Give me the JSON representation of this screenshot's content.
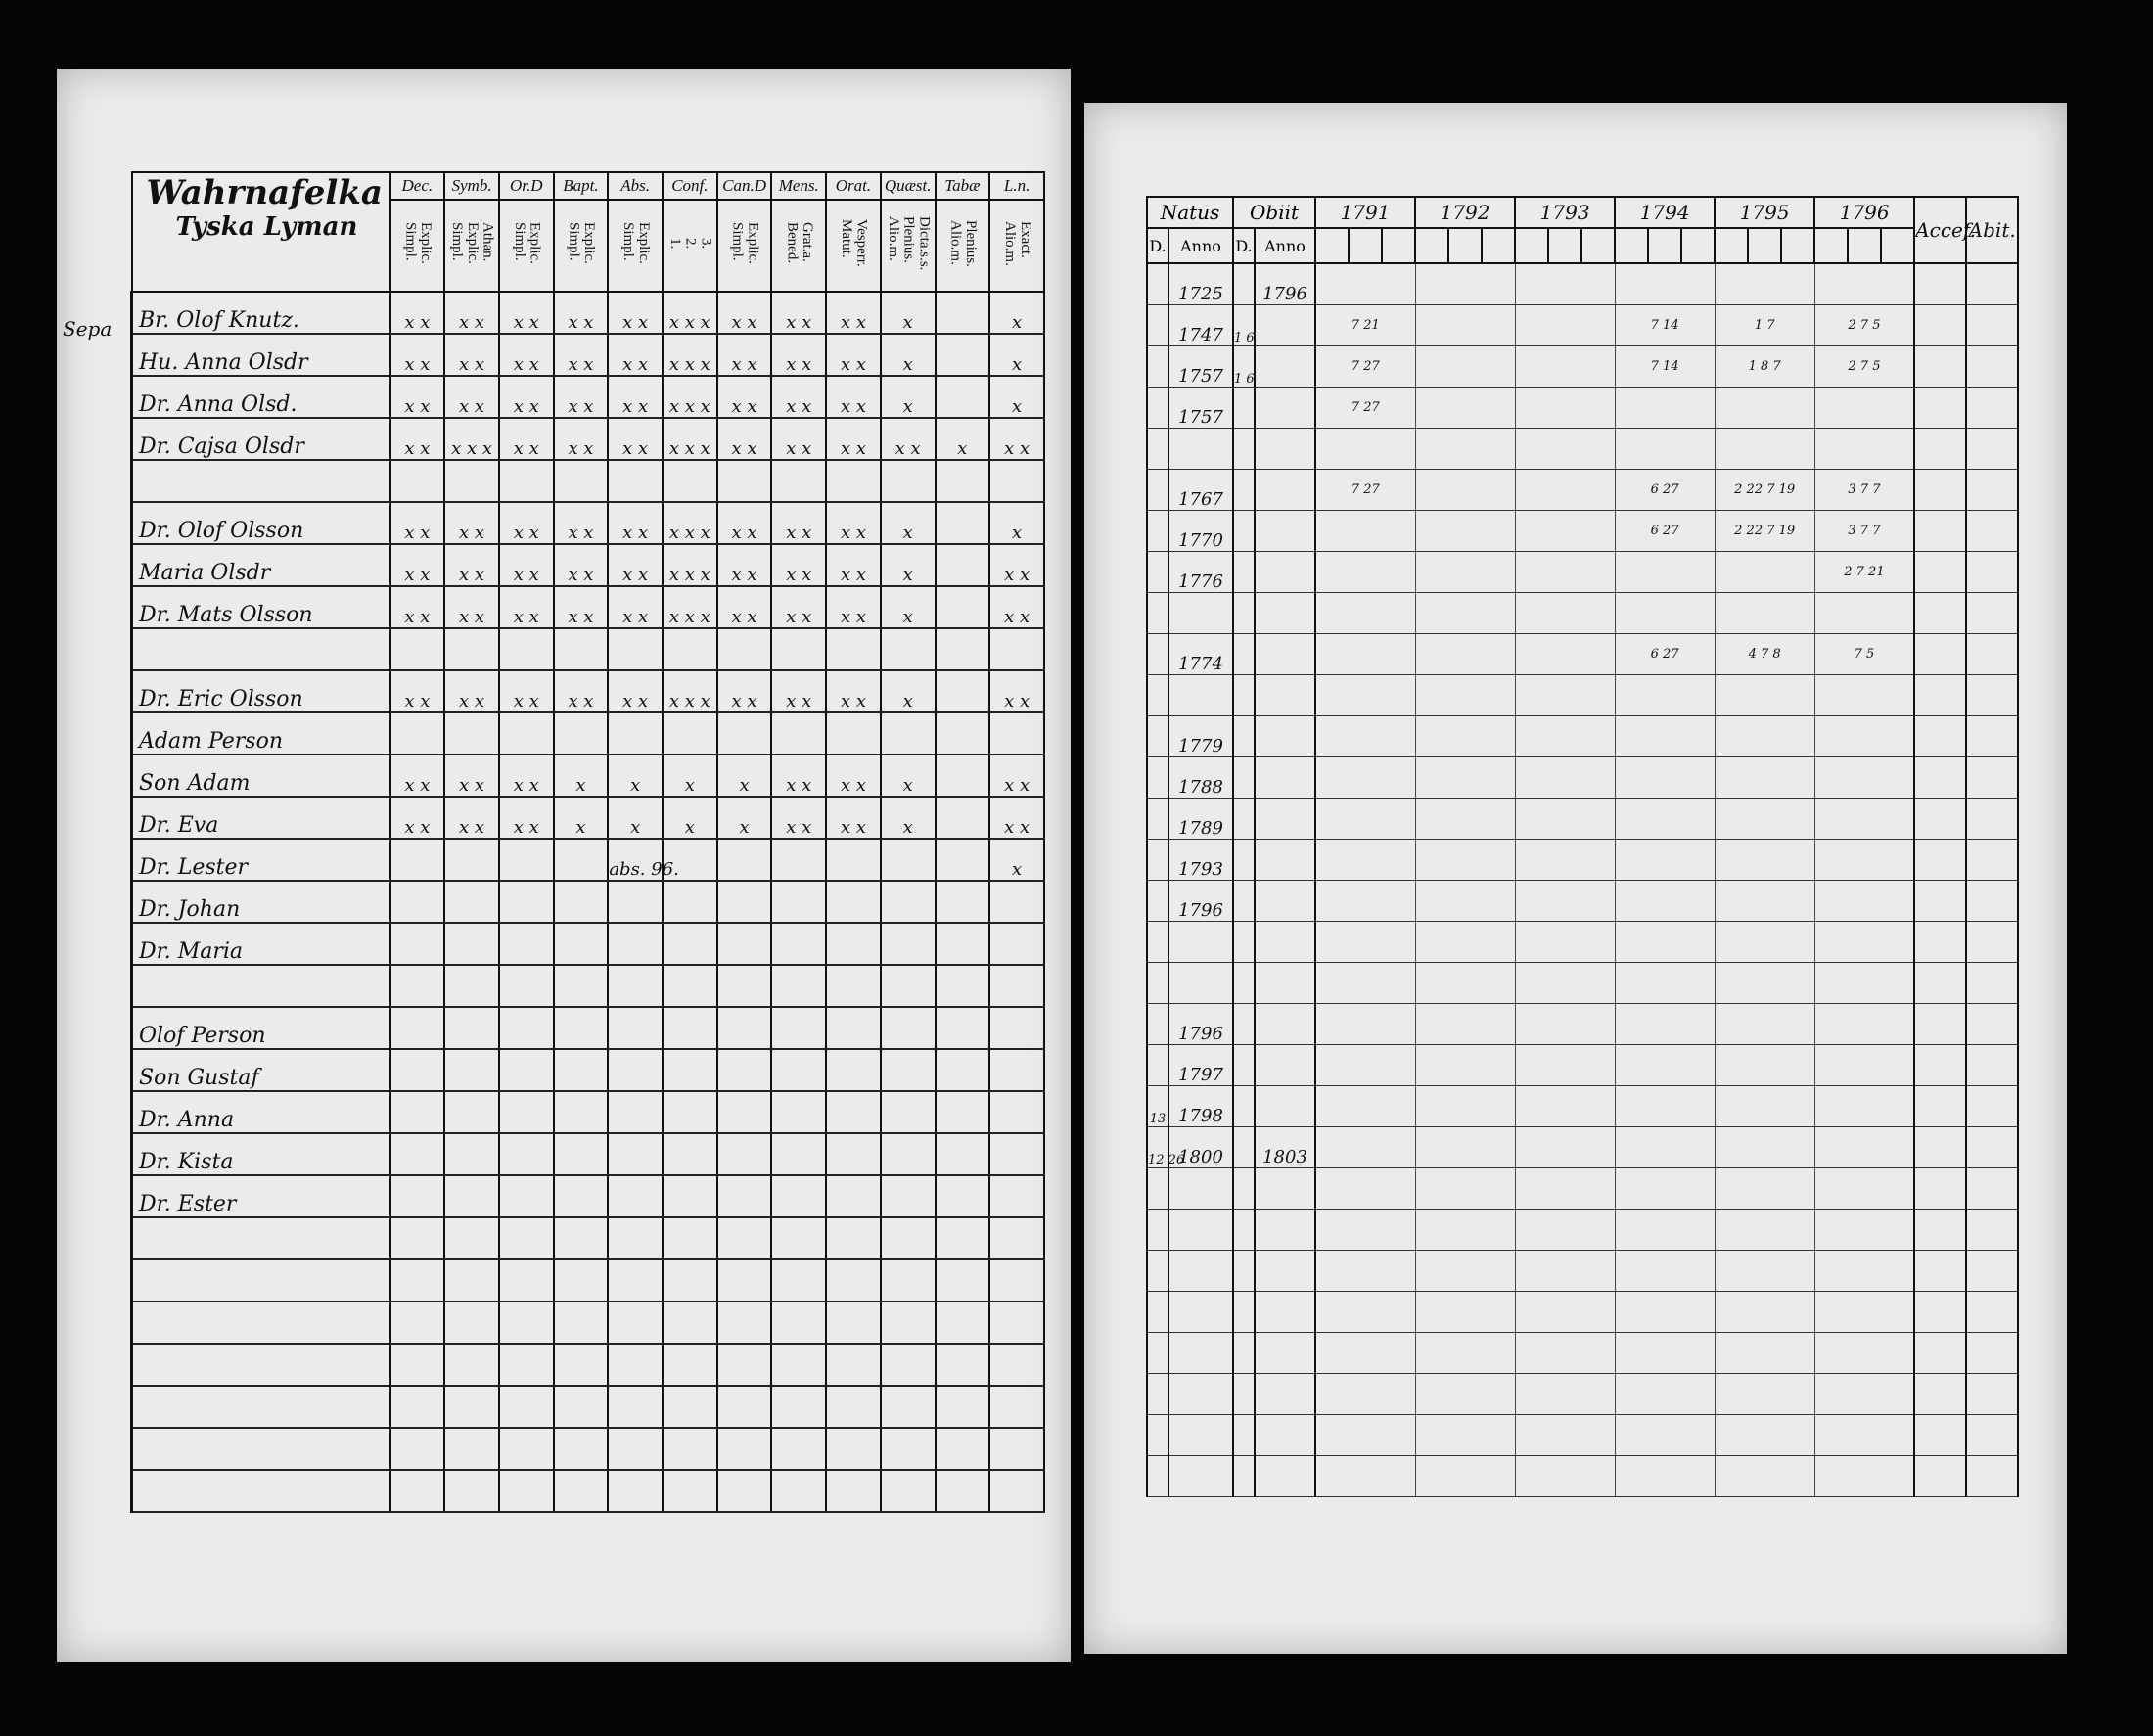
{
  "left_page": {
    "title": [
      "Wahrnafelka",
      "Tyska Lyman"
    ],
    "margin_note": "Sepa",
    "columns": [
      {
        "label": "Dec.",
        "sub": [
          "Explic.",
          "Simpl."
        ]
      },
      {
        "label": "Symb.",
        "sub": [
          "Athan.",
          "Explic.",
          "Simpl."
        ]
      },
      {
        "label": "Or.D",
        "sub": [
          "Explic.",
          "Simpl."
        ]
      },
      {
        "label": "Bapt.",
        "sub": [
          "Explic.",
          "Simpl."
        ]
      },
      {
        "label": "Abs.",
        "sub": [
          "Explic.",
          "Simpl."
        ]
      },
      {
        "label": "Conf.",
        "sub": [
          "3.",
          "2.",
          "1."
        ]
      },
      {
        "label": "Can.D",
        "sub": [
          "Explic.",
          "Simpl."
        ]
      },
      {
        "label": "Mens.",
        "sub": [
          "Grat.a.",
          "Bened."
        ]
      },
      {
        "label": "Orat.",
        "sub": [
          "Vesperr.",
          "Matut."
        ]
      },
      {
        "label": "Quæst.",
        "sub": [
          "Dicta.s.s.",
          "Plenius.",
          "Alio.m."
        ]
      },
      {
        "label": "Tabæ",
        "sub": [
          "Plenius.",
          "Alio.m."
        ]
      },
      {
        "label": "L.n.",
        "sub": [
          "Exact.",
          "Alio.m."
        ]
      }
    ],
    "rows": [
      {
        "name": "Br. Olof Knutz.",
        "marks": [
          "x x",
          "x x",
          "x x",
          "x x",
          "x x",
          "x x x",
          "x x",
          "x x",
          "x x",
          "x",
          "",
          "x"
        ]
      },
      {
        "name": "Hu. Anna Olsdr",
        "marks": [
          "x x",
          "x x",
          "x x",
          "x x",
          "x x",
          "x x x",
          "x x",
          "x x",
          "x x",
          "x",
          "",
          "x"
        ]
      },
      {
        "name": "Dr. Anna Olsd.",
        "marks": [
          "x x",
          "x x",
          "x x",
          "x x",
          "x x",
          "x x x",
          "x x",
          "x x",
          "x x",
          "x",
          "",
          "x"
        ]
      },
      {
        "name": "Dr. Cajsa Olsdr",
        "marks": [
          "x x",
          "x x x",
          "x x",
          "x x",
          "x x",
          "x x x",
          "x x",
          "x x",
          "x x",
          "x x",
          "x",
          "x x"
        ]
      },
      {
        "name": "",
        "marks": [
          "",
          "",
          "",
          "",
          "",
          "",
          "",
          "",
          "",
          "",
          "",
          ""
        ]
      },
      {
        "name": "Dr. Olof Olsson",
        "marks": [
          "x x",
          "x x",
          "x x",
          "x x",
          "x x",
          "x x x",
          "x x",
          "x x",
          "x x",
          "x",
          "",
          "x"
        ]
      },
      {
        "name": "Maria Olsdr",
        "marks": [
          "x x",
          "x x",
          "x x",
          "x x",
          "x x",
          "x x x",
          "x x",
          "x x",
          "x x",
          "x",
          "",
          "x x"
        ]
      },
      {
        "name": "Dr. Mats Olsson",
        "marks": [
          "x x",
          "x x",
          "x x",
          "x x",
          "x x",
          "x x x",
          "x x",
          "x x",
          "x x",
          "x",
          "",
          "x x"
        ]
      },
      {
        "name": "",
        "marks": [
          "",
          "",
          "",
          "",
          "",
          "",
          "",
          "",
          "",
          "",
          "",
          ""
        ]
      },
      {
        "name": "Dr. Eric Olsson",
        "marks": [
          "x x",
          "x x",
          "x x",
          "x x",
          "x x",
          "x x x",
          "x x",
          "x x",
          "x x",
          "x",
          "",
          "x x"
        ]
      },
      {
        "name": "Adam Person",
        "marks": [
          "",
          "",
          "",
          "",
          "",
          "",
          "",
          "",
          "",
          "",
          "",
          ""
        ]
      },
      {
        "name": "Son Adam",
        "marks": [
          "x x",
          "x x",
          "x x",
          "x",
          "x",
          "x",
          "x",
          "x x",
          "x x",
          "x",
          "",
          "x x"
        ]
      },
      {
        "name": "Dr. Eva",
        "marks": [
          "x x",
          "x x",
          "x x",
          "x",
          "x",
          "x",
          "x",
          "x x",
          "x x",
          "x",
          "",
          "x x"
        ]
      },
      {
        "name": "Dr. Lester",
        "marks": [
          "",
          "",
          "",
          "",
          "abs. 96.",
          "",
          "",
          "",
          "",
          "",
          "",
          "x"
        ]
      },
      {
        "name": "Dr. Johan",
        "marks": [
          "",
          "",
          "",
          "",
          "",
          "",
          "",
          "",
          "",
          "",
          "",
          ""
        ]
      },
      {
        "name": "Dr. Maria",
        "marks": [
          "",
          "",
          "",
          "",
          "",
          "",
          "",
          "",
          "",
          "",
          "",
          ""
        ]
      },
      {
        "name": "",
        "marks": [
          "",
          "",
          "",
          "",
          "",
          "",
          "",
          "",
          "",
          "",
          "",
          ""
        ]
      },
      {
        "name": "Olof Person",
        "marks": [
          "",
          "",
          "",
          "",
          "",
          "",
          "",
          "",
          "",
          "",
          "",
          ""
        ]
      },
      {
        "name": "Son Gustaf",
        "marks": [
          "",
          "",
          "",
          "",
          "",
          "",
          "",
          "",
          "",
          "",
          "",
          ""
        ]
      },
      {
        "name": "Dr. Anna",
        "marks": [
          "",
          "",
          "",
          "",
          "",
          "",
          "",
          "",
          "",
          "",
          "",
          ""
        ]
      },
      {
        "name": "Dr. Kista",
        "marks": [
          "",
          "",
          "",
          "",
          "",
          "",
          "",
          "",
          "",
          "",
          "",
          ""
        ]
      },
      {
        "name": "Dr. Ester",
        "marks": [
          "",
          "",
          "",
          "",
          "",
          "",
          "",
          "",
          "",
          "",
          "",
          ""
        ]
      },
      {
        "name": "",
        "marks": [
          "",
          "",
          "",
          "",
          "",
          "",
          "",
          "",
          "",
          "",
          "",
          ""
        ]
      },
      {
        "name": "",
        "marks": [
          "",
          "",
          "",
          "",
          "",
          "",
          "",
          "",
          "",
          "",
          "",
          ""
        ]
      },
      {
        "name": "",
        "marks": [
          "",
          "",
          "",
          "",
          "",
          "",
          "",
          "",
          "",
          "",
          "",
          ""
        ]
      },
      {
        "name": "",
        "marks": [
          "",
          "",
          "",
          "",
          "",
          "",
          "",
          "",
          "",
          "",
          "",
          ""
        ]
      },
      {
        "name": "",
        "marks": [
          "",
          "",
          "",
          "",
          "",
          "",
          "",
          "",
          "",
          "",
          "",
          ""
        ]
      },
      {
        "name": "",
        "marks": [
          "",
          "",
          "",
          "",
          "",
          "",
          "",
          "",
          "",
          "",
          "",
          ""
        ]
      },
      {
        "name": "",
        "marks": [
          "",
          "",
          "",
          "",
          "",
          "",
          "",
          "",
          "",
          "",
          "",
          ""
        ]
      }
    ]
  },
  "right_page": {
    "headers": {
      "natus": "Natus",
      "obiit": "Obiit",
      "d": "D.",
      "anno": "Anno",
      "accef": "Accef.",
      "abit": "Abit."
    },
    "years": [
      "1791",
      "1792",
      "1793",
      "1794",
      "1795",
      "1796"
    ],
    "rows": [
      {
        "natus_d": "",
        "natus_anno": "1725",
        "obiit_d": "",
        "obiit_anno": "1796",
        "years": [
          "",
          "",
          "",
          "",
          "",
          ""
        ]
      },
      {
        "natus_d": "",
        "natus_anno": "1747",
        "obiit_d": "1 6",
        "obiit_anno": "",
        "years": [
          "7 21",
          "",
          "",
          "7 14",
          "1 7",
          "2 7 5"
        ]
      },
      {
        "natus_d": "",
        "natus_anno": "1757",
        "obiit_d": "1 6",
        "obiit_anno": "",
        "years": [
          "7 27",
          "",
          "",
          "7 14",
          "1 8 7",
          "2 7 5"
        ]
      },
      {
        "natus_d": "",
        "natus_anno": "1757",
        "obiit_d": "",
        "obiit_anno": "",
        "years": [
          "7 27",
          "",
          "",
          "",
          "",
          ""
        ]
      },
      {
        "natus_d": "",
        "natus_anno": "",
        "obiit_d": "",
        "obiit_anno": "",
        "years": [
          "",
          "",
          "",
          "",
          "",
          ""
        ]
      },
      {
        "natus_d": "",
        "natus_anno": "1767",
        "obiit_d": "",
        "obiit_anno": "",
        "years": [
          "7 27",
          "",
          "",
          "6 27",
          "2 22 7 19",
          "3 7 7"
        ]
      },
      {
        "natus_d": "",
        "natus_anno": "1770",
        "obiit_d": "",
        "obiit_anno": "",
        "years": [
          "",
          "",
          "",
          "6 27",
          "2 22 7 19",
          "3 7 7"
        ]
      },
      {
        "natus_d": "",
        "natus_anno": "1776",
        "obiit_d": "",
        "obiit_anno": "",
        "years": [
          "",
          "",
          "",
          "",
          "",
          "2 7 21"
        ]
      },
      {
        "natus_d": "",
        "natus_anno": "",
        "obiit_d": "",
        "obiit_anno": "",
        "years": [
          "",
          "",
          "",
          "",
          "",
          ""
        ]
      },
      {
        "natus_d": "",
        "natus_anno": "1774",
        "obiit_d": "",
        "obiit_anno": "",
        "years": [
          "",
          "",
          "",
          "6 27",
          "4 7 8",
          "7 5"
        ]
      },
      {
        "natus_d": "",
        "natus_anno": "",
        "obiit_d": "",
        "obiit_anno": "",
        "years": [
          "",
          "",
          "",
          "",
          "",
          ""
        ]
      },
      {
        "natus_d": "",
        "natus_anno": "1779",
        "obiit_d": "",
        "obiit_anno": "",
        "years": [
          "",
          "",
          "",
          "",
          "",
          ""
        ]
      },
      {
        "natus_d": "",
        "natus_anno": "1788",
        "obiit_d": "",
        "obiit_anno": "",
        "years": [
          "",
          "",
          "",
          "",
          "",
          ""
        ]
      },
      {
        "natus_d": "",
        "natus_anno": "1789",
        "obiit_d": "",
        "obiit_anno": "",
        "years": [
          "",
          "",
          "",
          "",
          "",
          ""
        ]
      },
      {
        "natus_d": "",
        "natus_anno": "1793",
        "obiit_d": "",
        "obiit_anno": "",
        "years": [
          "",
          "",
          "",
          "",
          "",
          ""
        ]
      },
      {
        "natus_d": "",
        "natus_anno": "1796",
        "obiit_d": "",
        "obiit_anno": "",
        "years": [
          "",
          "",
          "",
          "",
          "",
          ""
        ]
      },
      {
        "natus_d": "",
        "natus_anno": "",
        "obiit_d": "",
        "obiit_anno": "",
        "years": [
          "",
          "",
          "",
          "",
          "",
          ""
        ]
      },
      {
        "natus_d": "",
        "natus_anno": "",
        "obiit_d": "",
        "obiit_anno": "",
        "years": [
          "",
          "",
          "",
          "",
          "",
          ""
        ]
      },
      {
        "natus_d": "",
        "natus_anno": "1796",
        "obiit_d": "",
        "obiit_anno": "",
        "years": [
          "",
          "",
          "",
          "",
          "",
          ""
        ]
      },
      {
        "natus_d": "",
        "natus_anno": "1797",
        "obiit_d": "",
        "obiit_anno": "",
        "years": [
          "",
          "",
          "",
          "",
          "",
          ""
        ]
      },
      {
        "natus_d": "13",
        "natus_anno": "1798",
        "obiit_d": "",
        "obiit_anno": "",
        "years": [
          "",
          "",
          "",
          "",
          "",
          ""
        ]
      },
      {
        "natus_d": "12 26",
        "natus_anno": "1800",
        "obiit_d": "",
        "obiit_anno": "1803",
        "years": [
          "",
          "",
          "",
          "",
          "",
          ""
        ]
      },
      {
        "natus_d": "",
        "natus_anno": "",
        "obiit_d": "",
        "obiit_anno": "",
        "years": [
          "",
          "",
          "",
          "",
          "",
          ""
        ]
      },
      {
        "natus_d": "",
        "natus_anno": "",
        "obiit_d": "",
        "obiit_anno": "",
        "years": [
          "",
          "",
          "",
          "",
          "",
          ""
        ]
      },
      {
        "natus_d": "",
        "natus_anno": "",
        "obiit_d": "",
        "obiit_anno": "",
        "years": [
          "",
          "",
          "",
          "",
          "",
          ""
        ]
      },
      {
        "natus_d": "",
        "natus_anno": "",
        "obiit_d": "",
        "obiit_anno": "",
        "years": [
          "",
          "",
          "",
          "",
          "",
          ""
        ]
      },
      {
        "natus_d": "",
        "natus_anno": "",
        "obiit_d": "",
        "obiit_anno": "",
        "years": [
          "",
          "",
          "",
          "",
          "",
          ""
        ]
      },
      {
        "natus_d": "",
        "natus_anno": "",
        "obiit_d": "",
        "obiit_anno": "",
        "years": [
          "",
          "",
          "",
          "",
          "",
          ""
        ]
      },
      {
        "natus_d": "",
        "natus_anno": "",
        "obiit_d": "",
        "obiit_anno": "",
        "years": [
          "",
          "",
          "",
          "",
          "",
          ""
        ]
      },
      {
        "natus_d": "",
        "natus_anno": "",
        "obiit_d": "",
        "obiit_anno": "",
        "years": [
          "",
          "",
          "",
          "",
          "",
          ""
        ]
      }
    ]
  }
}
